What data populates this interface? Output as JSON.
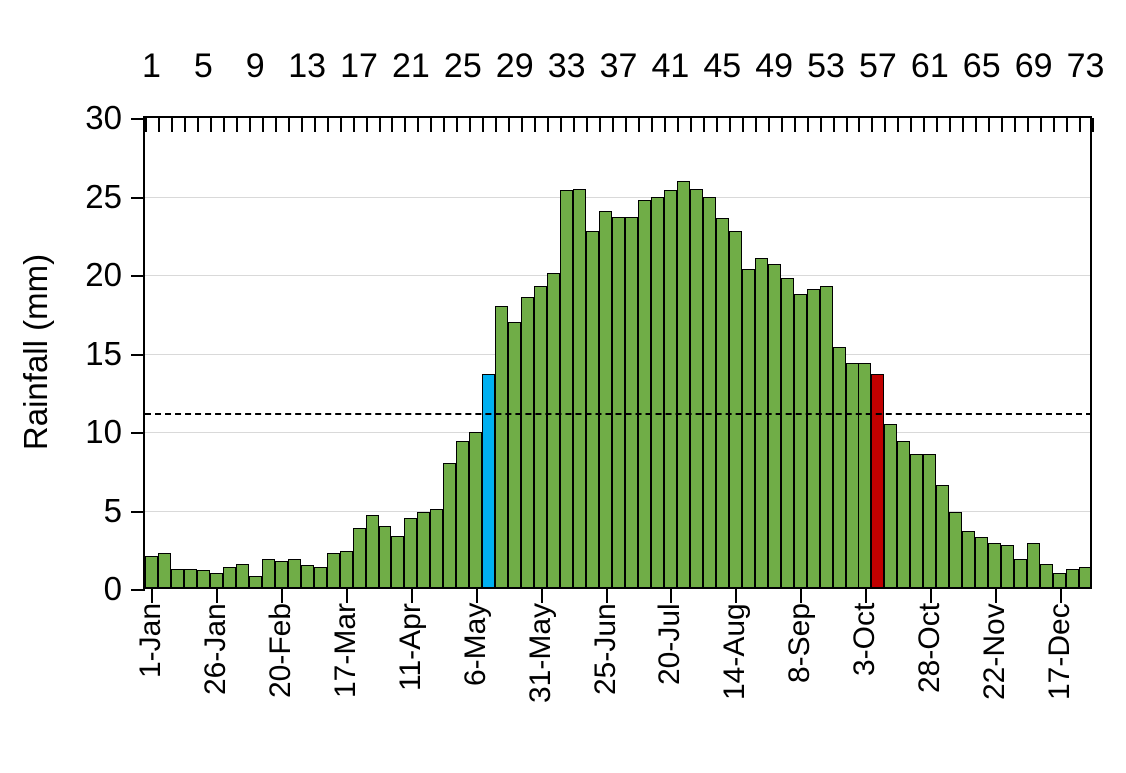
{
  "chart_data": {
    "type": "bar",
    "title": "",
    "ylabel": "Rainfall (mm)",
    "xlabel": "",
    "ylim": [
      0,
      30
    ],
    "yticks": [
      0,
      5,
      10,
      15,
      20,
      25,
      30
    ],
    "grid": true,
    "legend": false,
    "top_axis": {
      "description": "pentad numbers",
      "labeled_pentads": [
        1,
        5,
        9,
        13,
        17,
        21,
        25,
        29,
        33,
        37,
        41,
        45,
        49,
        53,
        57,
        61,
        65,
        69,
        73
      ]
    },
    "x_axis_date_ticks": [
      {
        "pentad": 1,
        "label": "1-Jan"
      },
      {
        "pentad": 6,
        "label": "26-Jan"
      },
      {
        "pentad": 11,
        "label": "20-Feb"
      },
      {
        "pentad": 16,
        "label": "17-Mar"
      },
      {
        "pentad": 21,
        "label": "11-Apr"
      },
      {
        "pentad": 26,
        "label": "6-May"
      },
      {
        "pentad": 31,
        "label": "31-May"
      },
      {
        "pentad": 36,
        "label": "25-Jun"
      },
      {
        "pentad": 41,
        "label": "20-Jul"
      },
      {
        "pentad": 46,
        "label": "14-Aug"
      },
      {
        "pentad": 51,
        "label": "8-Sep"
      },
      {
        "pentad": 56,
        "label": "3-Oct"
      },
      {
        "pentad": 61,
        "label": "28-Oct"
      },
      {
        "pentad": 66,
        "label": "22-Nov"
      },
      {
        "pentad": 71,
        "label": "17-Dec"
      }
    ],
    "categories_pentads": "1 to 73",
    "values": [
      2.1,
      2.3,
      1.3,
      1.3,
      1.2,
      1.0,
      1.4,
      1.6,
      0.8,
      1.9,
      1.8,
      1.9,
      1.5,
      1.4,
      2.3,
      2.4,
      3.9,
      4.7,
      4.0,
      3.4,
      4.5,
      4.9,
      5.1,
      8.0,
      9.4,
      10.0,
      13.7,
      18.0,
      17.0,
      18.6,
      19.3,
      20.1,
      25.4,
      25.5,
      22.8,
      24.1,
      23.7,
      23.7,
      24.8,
      25.0,
      25.4,
      26.0,
      25.5,
      25.0,
      23.6,
      22.8,
      20.4,
      21.1,
      20.7,
      19.8,
      18.8,
      19.1,
      19.3,
      15.4,
      14.4,
      14.4,
      13.7,
      10.5,
      9.4,
      8.6,
      8.6,
      6.6,
      4.9,
      3.7,
      3.3,
      2.9,
      2.8,
      1.9,
      2.9,
      1.6,
      1.0,
      1.3,
      1.4
    ],
    "highlighted_bars": {
      "blue_pentad": 27,
      "red_pentad": 57
    },
    "reference_line": {
      "value": 11.2,
      "style": "dashed"
    }
  },
  "colors": {
    "bar_fill": "#70AD47",
    "bar_blue": "#00B0F0",
    "bar_red": "#C00000",
    "bar_border": "#000000",
    "gridline": "#D9D9D9",
    "axis": "#000000",
    "text": "#000000",
    "background": "#FFFFFF"
  }
}
